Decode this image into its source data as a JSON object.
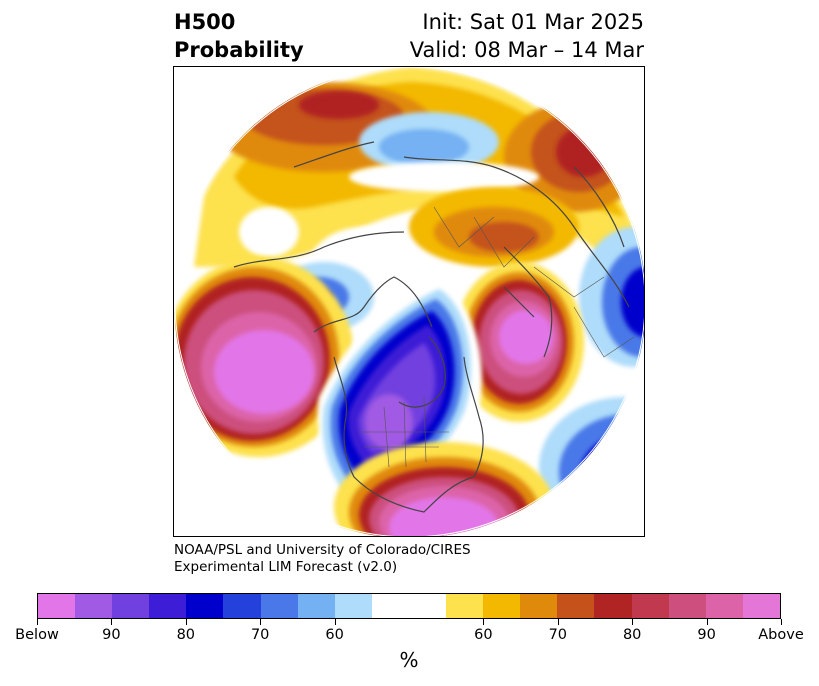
{
  "title": {
    "left_line1": "H500",
    "left_line2": "Probability",
    "right_line1": "Init: Sat 01 Mar 2025",
    "right_line2": "Valid: 08 Mar – 14 Mar"
  },
  "credit": {
    "line1": "NOAA/PSL and University of Colorado/CIRES",
    "line2": "Experimental LIM Forecast (v2.0)"
  },
  "colorbar": {
    "colors": [
      "#e276e8",
      "#a05ae3",
      "#7141df",
      "#3d1ed6",
      "#0000cc",
      "#2441db",
      "#4a78e8",
      "#74b1f3",
      "#aedcfa",
      "#ffffff",
      "#ffffff",
      "#fde14d",
      "#f3b800",
      "#e08a0c",
      "#c4521a",
      "#b02424",
      "#c1394f",
      "#cc4f7d",
      "#dc63a8",
      "#e476d8"
    ],
    "tick_labels": [
      "Below",
      "90",
      "80",
      "70",
      "60",
      "60",
      "70",
      "80",
      "90",
      "Above"
    ],
    "unit": "%"
  },
  "map": {
    "projection": "north-polar-stereographic",
    "anomaly_regions": [
      {
        "region": "Gulf of Alaska / NE Pacific",
        "category": "Above"
      },
      {
        "region": "Southeastern United States",
        "category": "Above"
      },
      {
        "region": "North Atlantic",
        "category": "Above"
      },
      {
        "region": "Western and central North America",
        "category": "Below"
      },
      {
        "region": "Western Europe",
        "category": "Below"
      },
      {
        "region": "Northwest Pacific",
        "category": "Below"
      },
      {
        "region": "Siberia",
        "category": "Above"
      }
    ]
  }
}
